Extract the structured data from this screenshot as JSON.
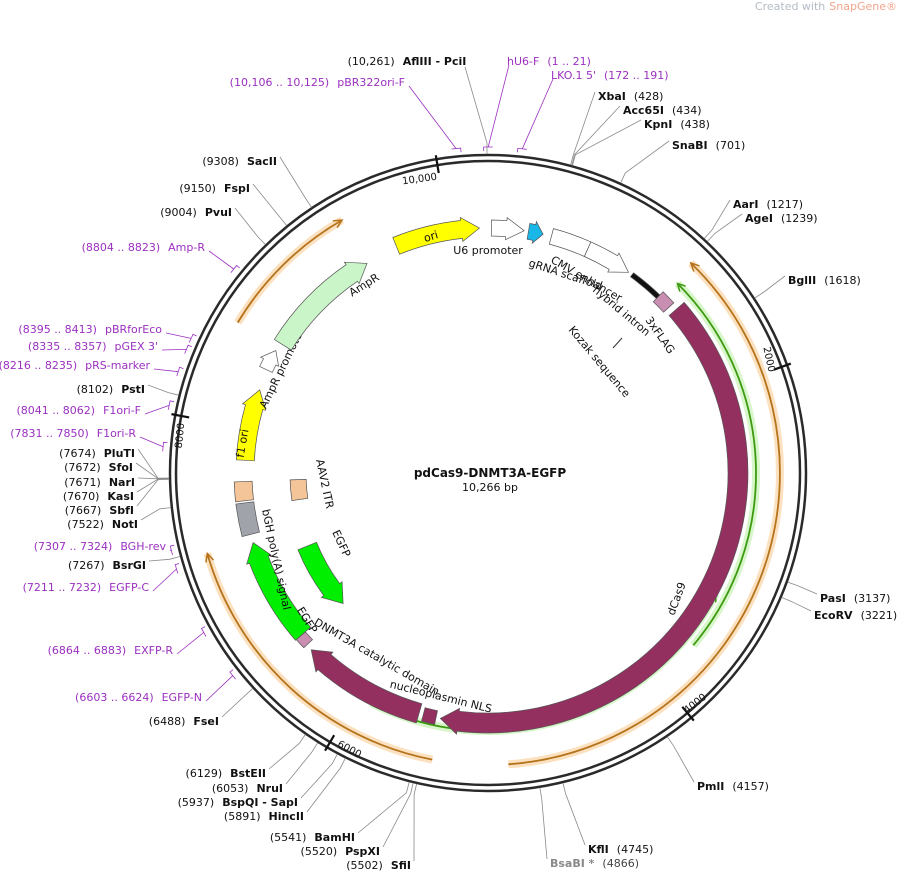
{
  "watermark": {
    "prefix": "Created with",
    "brand": "SnapGene®"
  },
  "title": "pdCas9-DNMT3A-EGFP",
  "length": "10,266 bp",
  "ticks": [
    "10,000",
    "2000",
    "4000",
    "6000",
    "8000"
  ],
  "sites": [
    {
      "position": "(10,261)",
      "name": "AflIII  -  PciI"
    },
    {
      "position": "(428)",
      "name": "XbaI"
    },
    {
      "position": "(434)",
      "name": "Acc65I"
    },
    {
      "position": "(438)",
      "name": "KpnI"
    },
    {
      "position": "(701)",
      "name": "SnaBI"
    },
    {
      "position": "(1217)",
      "name": "AarI"
    },
    {
      "position": "(1239)",
      "name": "AgeI"
    },
    {
      "position": "(1618)",
      "name": "BglII"
    },
    {
      "position": "(3137)",
      "name": "PasI"
    },
    {
      "position": "(3221)",
      "name": "EcoRV"
    },
    {
      "position": "(4157)",
      "name": "PmlI"
    },
    {
      "position": "(4745)",
      "name": "KflI"
    },
    {
      "position": "(4866)",
      "name": "BsaBI *"
    },
    {
      "position": "(5502)",
      "name": "SfiI"
    },
    {
      "position": "(5520)",
      "name": "PspXI"
    },
    {
      "position": "(5541)",
      "name": "BamHI"
    },
    {
      "position": "(5891)",
      "name": "HincII"
    },
    {
      "position": "(5937)",
      "name": "BspQI  -  SapI"
    },
    {
      "position": "(6053)",
      "name": "NruI"
    },
    {
      "position": "(6129)",
      "name": "BstEII"
    },
    {
      "position": "(6488)",
      "name": "FseI"
    },
    {
      "position": "(7267)",
      "name": "BsrGI"
    },
    {
      "position": "(7522)",
      "name": "NotI"
    },
    {
      "position": "(7667)",
      "name": "SbfI"
    },
    {
      "position": "(7670)",
      "name": "KasI"
    },
    {
      "position": "(7671)",
      "name": "NarI"
    },
    {
      "position": "(7672)",
      "name": "SfoI"
    },
    {
      "position": "(7674)",
      "name": "PluTI"
    },
    {
      "position": "(8102)",
      "name": "PstI"
    },
    {
      "position": "(9004)",
      "name": "PvuI"
    },
    {
      "position": "(9150)",
      "name": "FspI"
    },
    {
      "position": "(9308)",
      "name": "SacII"
    }
  ],
  "primers": [
    {
      "range": "(10,106 .. 10,125)",
      "name": "pBR322ori-F"
    },
    {
      "range": "(1 .. 21)",
      "name": "hU6-F"
    },
    {
      "range": "(172 .. 191)",
      "name": "LKO.1 5'"
    },
    {
      "range": "(8804 .. 8823)",
      "name": "Amp-R"
    },
    {
      "range": "(8395 .. 8413)",
      "name": "pBRforEco"
    },
    {
      "range": "(8335 .. 8357)",
      "name": "pGEX 3'"
    },
    {
      "range": "(8216 .. 8235)",
      "name": "pRS-marker"
    },
    {
      "range": "(8041 .. 8062)",
      "name": "F1ori-F"
    },
    {
      "range": "(7831 .. 7850)",
      "name": "F1ori-R"
    },
    {
      "range": "(7307 .. 7324)",
      "name": "BGH-rev"
    },
    {
      "range": "(7211 .. 7232)",
      "name": "EGFP-C"
    },
    {
      "range": "(6864 .. 6883)",
      "name": "EXFP-R"
    },
    {
      "range": "(6603 .. 6624)",
      "name": "EGFP-N"
    }
  ],
  "features": [
    {
      "name": "ori"
    },
    {
      "name": "U6 promoter"
    },
    {
      "name": "gRNA scaffold"
    },
    {
      "name": "CMV enhancer"
    },
    {
      "name": "hybrid intron"
    },
    {
      "name": "3xFLAG"
    },
    {
      "name": "Kozak sequence"
    },
    {
      "name": "dCas9"
    },
    {
      "name": "nucleoplasmin NLS"
    },
    {
      "name": "DNMT3A catalytic domain"
    },
    {
      "name": "EGFP"
    },
    {
      "name": "bGH poly(A) signal"
    },
    {
      "name": "AAV2 ITR"
    },
    {
      "name": "f1 ori"
    },
    {
      "name": "AmpR promoter"
    },
    {
      "name": "AmpR"
    },
    {
      "name": "EGFP"
    }
  ]
}
